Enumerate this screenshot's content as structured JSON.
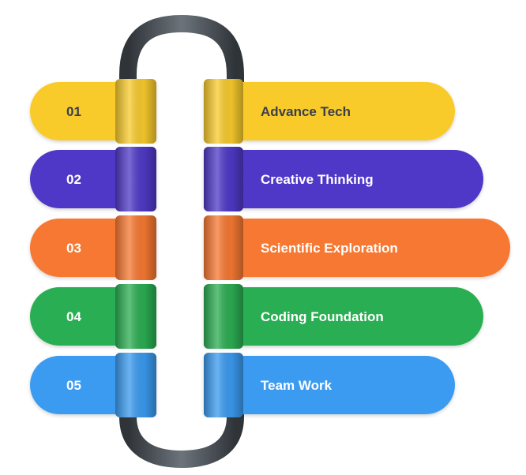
{
  "items": [
    {
      "number": "01",
      "label": "Advance Tech",
      "color": "#F9CB2C",
      "text_color": "#3A3F4B"
    },
    {
      "number": "02",
      "label": "Creative Thinking",
      "color": "#4F39C7",
      "text_color": "#FFFFFF"
    },
    {
      "number": "03",
      "label": "Scientific Exploration",
      "color": "#F77831",
      "text_color": "#FFFFFF"
    },
    {
      "number": "04",
      "label": "Coding Foundation",
      "color": "#2BAE52",
      "text_color": "#FFFFFF"
    },
    {
      "number": "05",
      "label": "Team Work",
      "color": "#3A9BF0",
      "text_color": "#FFFFFF"
    }
  ],
  "connector_color": "#4B5157"
}
